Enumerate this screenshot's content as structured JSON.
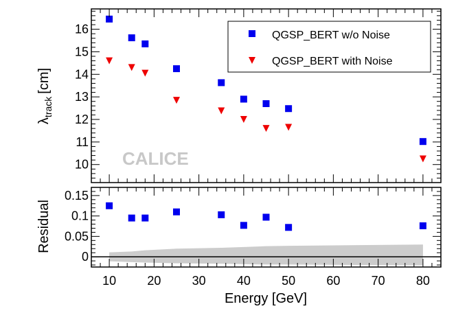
{
  "chart_data": [
    {
      "type": "scatter",
      "ylabel": "λ",
      "ylabel_sub": "track",
      "ylabel_unit": "[cm]",
      "xlim": [
        6,
        84
      ],
      "ylim": [
        9.2,
        16.9
      ],
      "xticks": [
        10,
        20,
        30,
        40,
        50,
        60,
        70,
        80
      ],
      "yticks": [
        10,
        11,
        12,
        13,
        14,
        15,
        16
      ],
      "ytick_labels": [
        "10",
        "11",
        "12",
        "13",
        "14",
        "15",
        "16"
      ],
      "watermark": "CALICE",
      "legend_position": "top-right",
      "series": [
        {
          "name": "QGSP_BERT w/o Noise",
          "marker": "square",
          "color": "#0000ee",
          "x": [
            10,
            15,
            18,
            25,
            35,
            40,
            45,
            50,
            80
          ],
          "y": [
            16.45,
            15.62,
            15.35,
            14.25,
            13.63,
            12.9,
            12.7,
            12.48,
            11.02
          ]
        },
        {
          "name": "QGSP_BERT with Noise",
          "marker": "triangle-down",
          "color": "#ee0000",
          "x": [
            10,
            15,
            18,
            25,
            35,
            40,
            45,
            50,
            80
          ],
          "y": [
            14.6,
            14.3,
            14.05,
            12.85,
            12.38,
            12.0,
            11.6,
            11.65,
            10.25
          ]
        }
      ]
    },
    {
      "type": "scatter",
      "ylabel": "Residual",
      "xlabel": "Energy [GeV]",
      "xlim": [
        6,
        84
      ],
      "ylim": [
        -0.025,
        0.17
      ],
      "xticks": [
        10,
        20,
        30,
        40,
        50,
        60,
        70,
        80
      ],
      "xtick_labels": [
        "10",
        "20",
        "30",
        "40",
        "50",
        "60",
        "70",
        "80"
      ],
      "yticks": [
        0,
        0.05,
        0.1,
        0.15
      ],
      "ytick_labels": [
        "0",
        "0.05",
        "0.1",
        "0.15"
      ],
      "series": [
        {
          "marker": "square",
          "color": "#0000ee",
          "x": [
            10,
            15,
            18,
            25,
            35,
            40,
            45,
            50,
            80
          ],
          "y": [
            0.125,
            0.095,
            0.095,
            0.11,
            0.103,
            0.077,
            0.097,
            0.072,
            0.076
          ]
        }
      ],
      "band": {
        "color": "#cccccc",
        "x": [
          10,
          15,
          18,
          25,
          35,
          40,
          45,
          50,
          80
        ],
        "upper": [
          0.011,
          0.013,
          0.016,
          0.02,
          0.022,
          0.024,
          0.026,
          0.027,
          0.03
        ],
        "lower": [
          -0.011,
          -0.013,
          -0.014,
          -0.016,
          -0.017,
          -0.018,
          -0.019,
          -0.019,
          -0.021
        ]
      }
    }
  ]
}
